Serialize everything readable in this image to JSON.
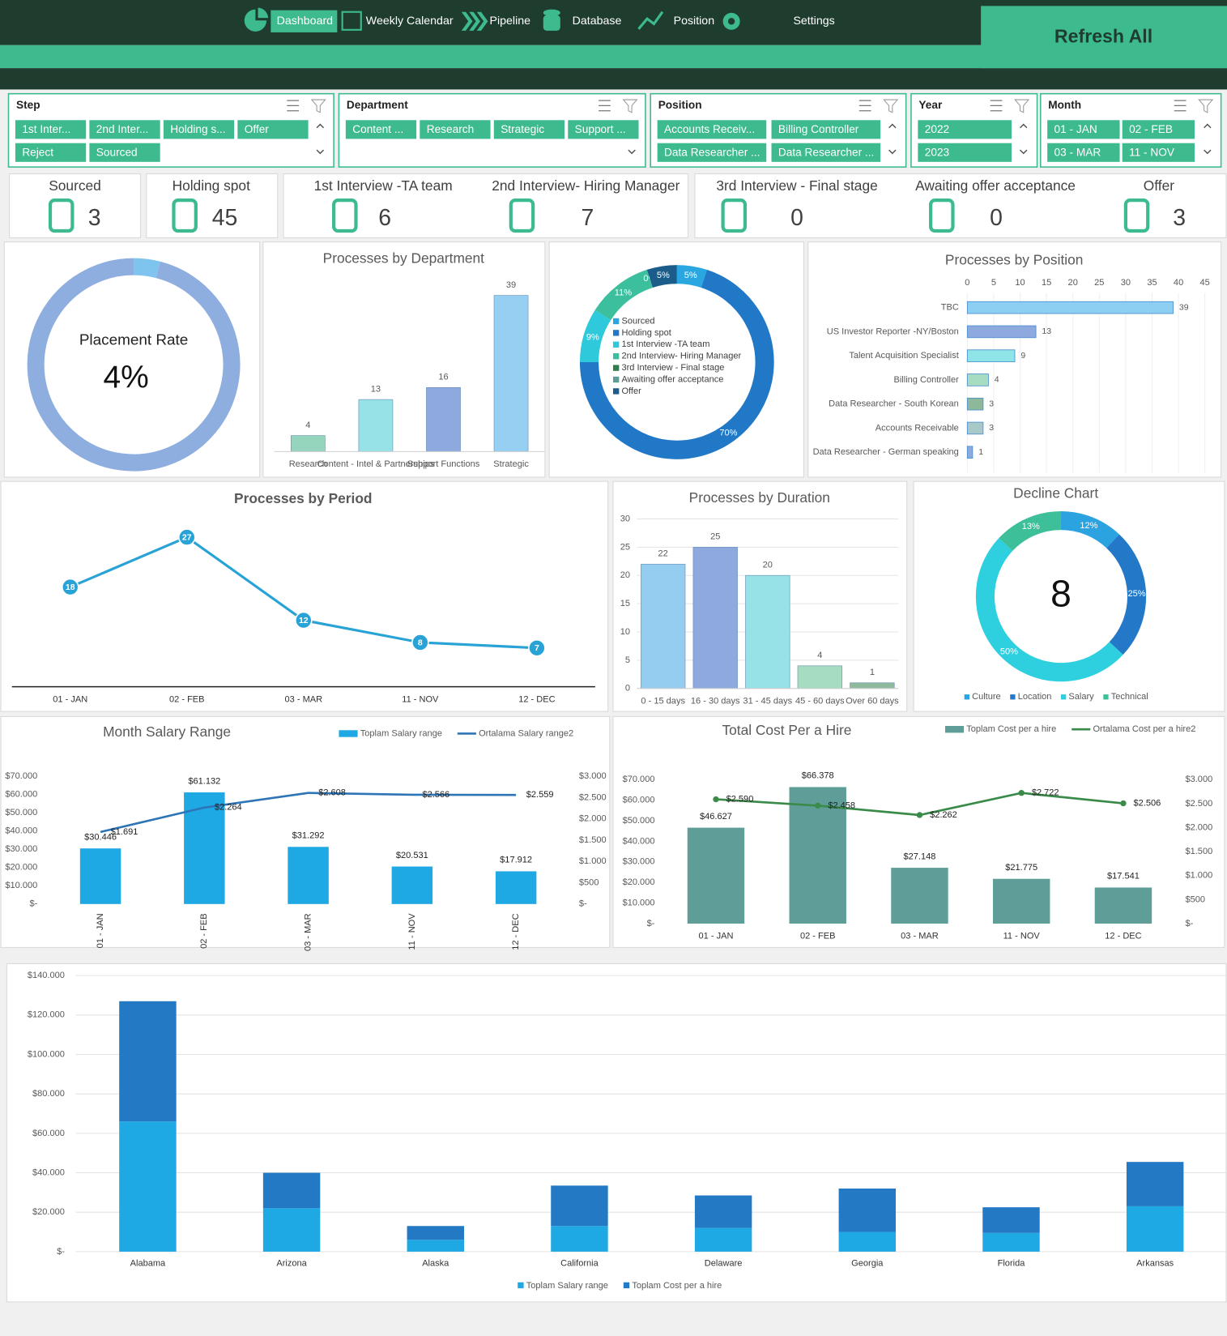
{
  "nav": {
    "items": [
      "Dashboard",
      "Weekly Calendar",
      "Pipeline",
      "Database",
      "Position",
      "Settings"
    ],
    "button": "Refresh All"
  },
  "slicers": [
    {
      "title": "Step",
      "items": [
        "1st Inter...",
        "2nd Inter...",
        "Holding s...",
        "Offer",
        "Reject",
        "Sourced"
      ]
    },
    {
      "title": "Department",
      "items": [
        "Content ...",
        "Research",
        "Strategic",
        "Support ..."
      ]
    },
    {
      "title": "Position",
      "items": [
        "Accounts Receiv...",
        "Billing Controller",
        "Data Researcher ...",
        "Data Researcher ..."
      ]
    },
    {
      "title": "Year",
      "items": [
        "2022",
        "2023"
      ]
    },
    {
      "title": "Month",
      "items": [
        "01 - JAN",
        "02 - FEB",
        "03 - MAR",
        "11 - NOV"
      ]
    }
  ],
  "kpis": [
    {
      "label": "Sourced",
      "value": 3
    },
    {
      "label": "Holding spot",
      "value": 45
    },
    {
      "label": "1st Interview -TA team",
      "value": 6
    },
    {
      "label": "2nd Interview- Hiring Manager",
      "value": 7
    },
    {
      "label": "3rd Interview - Final stage",
      "value": 0
    },
    {
      "label": "Awaiting offer acceptance",
      "value": 0
    },
    {
      "label": "Offer",
      "value": 3
    }
  ],
  "chart_data": [
    {
      "type": "donut",
      "title": "Placement Rate",
      "center_label": "4%",
      "values": [
        4,
        96
      ],
      "colors": [
        "#7fc3ef",
        "#8eaee0"
      ]
    },
    {
      "type": "bar",
      "title": "Processes by Department",
      "categories": [
        "Research",
        "Content - Intel & Partnerships",
        "Support Functions",
        "Strategic"
      ],
      "values": [
        4,
        13,
        16,
        39
      ],
      "colors": [
        "#95d5bd",
        "#96e2e6",
        "#8ea9dd",
        "#95cff1"
      ],
      "ylim": [
        0,
        40
      ]
    },
    {
      "type": "donut",
      "categories": [
        "Sourced",
        "Holding spot",
        "1st Interview -TA team",
        "2nd Interview- Hiring Manager",
        "3rd Interview - Final stage",
        "Awaiting offer acceptance",
        "Offer"
      ],
      "values": [
        5,
        70,
        9,
        11,
        0,
        0,
        5
      ],
      "value_labels": [
        "5%",
        "70%",
        "9%",
        "11%",
        null,
        "0%",
        "5%"
      ],
      "colors": [
        "#2aa7e0",
        "#2178c6",
        "#2ecadc",
        "#3cbf9c",
        "#2e7d4f",
        "#5b9e98",
        "#1b5c8a"
      ],
      "legend": "center"
    },
    {
      "type": "hbar",
      "title": "Processes by Position",
      "categories": [
        "TBC",
        "US Investor Reporter -NY/Boston",
        "Talent Acquisition Specialist",
        "Billing Controller",
        "Data Researcher - South Korean",
        "Accounts Receivable",
        "Data Researcher - German speaking"
      ],
      "values": [
        39,
        13,
        9,
        4,
        3,
        3,
        1
      ],
      "colors": [
        "#8dcff2",
        "#8ea9dd",
        "#8fe4e8",
        "#a7dcc0",
        "#8db89a",
        "#a9c9c9",
        "#8ea9dd"
      ],
      "xlim": [
        0,
        45
      ],
      "xticks": [
        0,
        5,
        10,
        15,
        20,
        25,
        30,
        35,
        40,
        45
      ]
    },
    {
      "type": "line",
      "title": "Processes by Period",
      "categories": [
        "01 - JAN",
        "02 - FEB",
        "03 - MAR",
        "11 - NOV",
        "12 - DEC"
      ],
      "values": [
        18,
        27,
        12,
        8,
        7
      ],
      "color": "#29a3d6",
      "ylim": [
        0,
        30
      ]
    },
    {
      "type": "bar",
      "title": "Processes by Duration",
      "categories": [
        "0 - 15 days",
        "16 - 30 days",
        "31 - 45 days",
        "45 - 60 days",
        "Over 60 days"
      ],
      "values": [
        22,
        25,
        20,
        4,
        1
      ],
      "colors": [
        "#94cdf0",
        "#8ea9dd",
        "#96e2e6",
        "#a6dcbf",
        "#8fba9c"
      ],
      "ylim": [
        0,
        30
      ],
      "yticks": [
        0,
        5,
        10,
        15,
        20,
        25,
        30
      ],
      "grid": true
    },
    {
      "type": "donut",
      "title": "Decline Chart",
      "center_label": 8,
      "categories": [
        "Culture",
        "Location",
        "Salary",
        "Technical"
      ],
      "values": [
        12,
        25,
        50,
        13
      ],
      "value_labels": [
        "12%",
        "25%",
        "50%",
        "13%"
      ],
      "colors": [
        "#2ba3e0",
        "#2379c8",
        "#2ed0e0",
        "#3dbf9a"
      ],
      "legend": "bottom"
    },
    {
      "type": "combo",
      "title": "Month Salary Range",
      "categories": [
        "01 - JAN",
        "02 - FEB",
        "03 - MAR",
        "11 - NOV",
        "12 - DEC"
      ],
      "series": [
        {
          "name": "Toplam Salary range",
          "color": "#1ea8e4",
          "values": [
            30446,
            61132,
            31292,
            20531,
            17912
          ],
          "value_labels": [
            "$30.446",
            "$61.132",
            "$31.292",
            "$20.531",
            "$17.912"
          ]
        },
        {
          "name": "Ortalama Salary range2",
          "color": "#2e75b6",
          "axis": "y2",
          "values": [
            1691,
            2264,
            2608,
            2566,
            2559
          ],
          "value_labels": [
            "$1.691",
            "$2.264",
            "$2.608",
            "$2.566",
            "$2.559"
          ]
        }
      ],
      "ylim": [
        0,
        70000
      ],
      "yticks": [
        {
          "value": 0,
          "label": "$-"
        },
        {
          "value": 10000,
          "label": "$10.000"
        },
        {
          "value": 20000,
          "label": "$20.000"
        },
        {
          "value": 30000,
          "label": "$30.000"
        },
        {
          "value": 40000,
          "label": "$40.000"
        },
        {
          "value": 50000,
          "label": "$50.000"
        },
        {
          "value": 60000,
          "label": "$60.000"
        },
        {
          "value": 70000,
          "label": "$70.000"
        }
      ],
      "y2lim": [
        0,
        3000
      ],
      "y2ticks": [
        {
          "value": 0,
          "label": "$-"
        },
        {
          "value": 500,
          "label": "$500"
        },
        {
          "value": 1000,
          "label": "$1.000"
        },
        {
          "value": 1500,
          "label": "$1.500"
        },
        {
          "value": 2000,
          "label": "$2.000"
        },
        {
          "value": 2500,
          "label": "$2.500"
        },
        {
          "value": 3000,
          "label": "$3.000"
        }
      ],
      "legend": "top"
    },
    {
      "type": "combo",
      "title": "Total Cost Per a Hire",
      "categories": [
        "01 - JAN",
        "02 - FEB",
        "03 - MAR",
        "11 - NOV",
        "12 - DEC"
      ],
      "series": [
        {
          "name": "Toplam Cost per a hire",
          "color": "#5f9e98",
          "values": [
            46627,
            66378,
            27148,
            21775,
            17541
          ],
          "value_labels": [
            "$46.627",
            "$66.378",
            "$27.148",
            "$21.775",
            "$17.541"
          ]
        },
        {
          "name": "Ortalama Cost per a hire2",
          "color": "#3a8a4a",
          "axis": "y2",
          "values": [
            2590,
            2458,
            2262,
            2722,
            2506
          ],
          "value_labels": [
            "$2.590",
            "$2.458",
            "$2.262",
            "$2.722",
            "$2.506"
          ]
        }
      ],
      "ylim": [
        0,
        70000
      ],
      "yticks": [
        {
          "value": 0,
          "label": "$-"
        },
        {
          "value": 10000,
          "label": "$10.000"
        },
        {
          "value": 20000,
          "label": "$20.000"
        },
        {
          "value": 30000,
          "label": "$30.000"
        },
        {
          "value": 40000,
          "label": "$40.000"
        },
        {
          "value": 50000,
          "label": "$50.000"
        },
        {
          "value": 60000,
          "label": "$60.000"
        },
        {
          "value": 70000,
          "label": "$70.000"
        }
      ],
      "y2lim": [
        0,
        3000
      ],
      "y2ticks": [
        {
          "value": 0,
          "label": "$-"
        },
        {
          "value": 500,
          "label": "$500"
        },
        {
          "value": 1000,
          "label": "$1.000"
        },
        {
          "value": 1500,
          "label": "$1.500"
        },
        {
          "value": 2000,
          "label": "$2.000"
        },
        {
          "value": 2500,
          "label": "$2.500"
        },
        {
          "value": 3000,
          "label": "$3.000"
        }
      ],
      "legend": "top"
    },
    {
      "type": "stacked_bar",
      "categories": [
        "Alabama",
        "Arizona",
        "Alaska",
        "California",
        "Delaware",
        "Georgia",
        "Florida",
        "Arkansas"
      ],
      "series": [
        {
          "name": "Toplam Salary range",
          "color": "#1ea8e4",
          "values": [
            66000,
            22000,
            6000,
            13000,
            12000,
            10000,
            9500,
            23000
          ]
        },
        {
          "name": "Toplam Cost per a hire",
          "color": "#2479c4",
          "values": [
            61000,
            18000,
            7000,
            20500,
            16500,
            22000,
            13000,
            22500
          ]
        }
      ],
      "ylim": [
        0,
        140000
      ],
      "yticks": [
        {
          "value": 0,
          "label": "$-"
        },
        {
          "value": 20000,
          "label": "$20.000"
        },
        {
          "value": 40000,
          "label": "$40.000"
        },
        {
          "value": 60000,
          "label": "$60.000"
        },
        {
          "value": 80000,
          "label": "$80.000"
        },
        {
          "value": 100000,
          "label": "$100.000"
        },
        {
          "value": 120000,
          "label": "$120.000"
        },
        {
          "value": 140000,
          "label": "$140.000"
        }
      ],
      "grid": true,
      "legend": "bottom"
    }
  ]
}
